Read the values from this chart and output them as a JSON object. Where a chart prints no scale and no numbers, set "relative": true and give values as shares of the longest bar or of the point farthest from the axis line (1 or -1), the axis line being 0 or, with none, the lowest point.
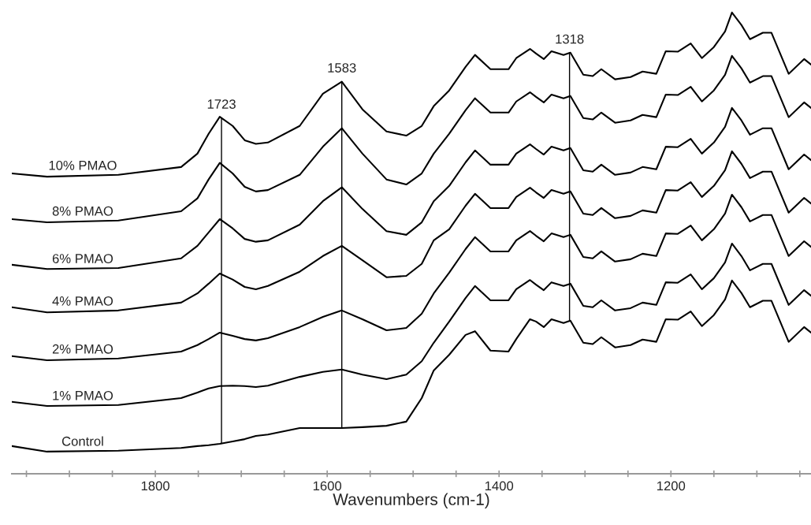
{
  "chart_data": {
    "type": "line",
    "relative": true,
    "xlabel": "Wavenumbers (cm-1)",
    "x": [
      1967,
      1926,
      1843,
      1770,
      1751,
      1738,
      1725,
      1710,
      1696,
      1683,
      1669,
      1632,
      1605,
      1583,
      1559,
      1531,
      1508,
      1490,
      1476,
      1458,
      1439,
      1428,
      1410,
      1389,
      1380,
      1364,
      1357,
      1348,
      1339,
      1325,
      1317,
      1302,
      1291,
      1281,
      1265,
      1247,
      1233,
      1217,
      1206,
      1192,
      1177,
      1164,
      1150,
      1137,
      1129,
      1118,
      1108,
      1093,
      1083,
      1063,
      1045,
      1037
    ],
    "xlim": [
      1967,
      1037
    ],
    "xticks": [
      {
        "value": 1950,
        "label": null
      },
      {
        "value": 1900,
        "label": null
      },
      {
        "value": 1850,
        "label": null
      },
      1800,
      {
        "value": 1750,
        "label": null
      },
      {
        "value": 1700,
        "label": null
      },
      {
        "value": 1650,
        "label": null
      },
      1600,
      {
        "value": 1550,
        "label": null
      },
      {
        "value": 1500,
        "label": null
      },
      {
        "value": 1450,
        "label": null
      },
      1400,
      {
        "value": 1350,
        "label": null
      },
      {
        "value": 1300,
        "label": null
      },
      {
        "value": 1250,
        "label": null
      },
      1200,
      {
        "value": 1150,
        "label": null
      },
      {
        "value": 1100,
        "label": null
      },
      {
        "value": 1050,
        "label": null
      }
    ],
    "tick_labels": "x",
    "series": [
      {
        "name": "10% PMAO",
        "color": "#000000",
        "values": [
          0.651,
          0.644,
          0.648,
          0.665,
          0.694,
          0.737,
          0.774,
          0.754,
          0.723,
          0.715,
          0.718,
          0.754,
          0.824,
          0.85,
          0.79,
          0.742,
          0.733,
          0.754,
          0.797,
          0.831,
          0.882,
          0.908,
          0.877,
          0.877,
          0.901,
          0.921,
          0.911,
          0.899,
          0.916,
          0.908,
          0.913,
          0.865,
          0.862,
          0.877,
          0.855,
          0.86,
          0.872,
          0.867,
          0.916,
          0.915,
          0.933,
          0.901,
          0.925,
          0.959,
          1.0,
          0.973,
          0.942,
          0.956,
          0.956,
          0.867,
          0.899,
          0.887
        ]
      },
      {
        "name": "8% PMAO",
        "color": "#000000",
        "values": [
          0.552,
          0.545,
          0.549,
          0.569,
          0.597,
          0.638,
          0.674,
          0.651,
          0.622,
          0.612,
          0.615,
          0.648,
          0.709,
          0.749,
          0.694,
          0.638,
          0.627,
          0.651,
          0.694,
          0.737,
          0.788,
          0.814,
          0.783,
          0.783,
          0.807,
          0.827,
          0.817,
          0.805,
          0.822,
          0.814,
          0.819,
          0.771,
          0.768,
          0.783,
          0.761,
          0.766,
          0.778,
          0.773,
          0.822,
          0.821,
          0.839,
          0.807,
          0.831,
          0.865,
          0.906,
          0.879,
          0.848,
          0.862,
          0.862,
          0.773,
          0.805,
          0.793
        ]
      },
      {
        "name": "6% PMAO",
        "color": "#000000",
        "values": [
          0.453,
          0.444,
          0.446,
          0.467,
          0.494,
          0.523,
          0.552,
          0.532,
          0.509,
          0.503,
          0.506,
          0.54,
          0.591,
          0.621,
          0.574,
          0.526,
          0.518,
          0.545,
          0.591,
          0.624,
          0.675,
          0.701,
          0.67,
          0.67,
          0.694,
          0.714,
          0.704,
          0.692,
          0.709,
          0.701,
          0.706,
          0.658,
          0.655,
          0.67,
          0.648,
          0.653,
          0.665,
          0.66,
          0.709,
          0.708,
          0.726,
          0.694,
          0.718,
          0.752,
          0.793,
          0.766,
          0.735,
          0.749,
          0.749,
          0.66,
          0.692,
          0.68
        ]
      },
      {
        "name": "4% PMAO",
        "color": "#000000",
        "values": [
          0.361,
          0.35,
          0.354,
          0.371,
          0.391,
          0.412,
          0.434,
          0.421,
          0.405,
          0.4,
          0.407,
          0.438,
          0.472,
          0.494,
          0.463,
          0.426,
          0.429,
          0.455,
          0.506,
          0.53,
          0.581,
          0.607,
          0.576,
          0.576,
          0.6,
          0.62,
          0.61,
          0.598,
          0.615,
          0.607,
          0.612,
          0.564,
          0.561,
          0.576,
          0.554,
          0.559,
          0.571,
          0.566,
          0.615,
          0.614,
          0.632,
          0.6,
          0.624,
          0.658,
          0.699,
          0.672,
          0.641,
          0.655,
          0.655,
          0.566,
          0.598,
          0.586
        ]
      },
      {
        "name": "2% PMAO",
        "color": "#000000",
        "values": [
          0.255,
          0.246,
          0.25,
          0.265,
          0.279,
          0.292,
          0.306,
          0.299,
          0.292,
          0.289,
          0.294,
          0.318,
          0.34,
          0.354,
          0.335,
          0.311,
          0.316,
          0.347,
          0.391,
          0.436,
          0.487,
          0.513,
          0.482,
          0.482,
          0.506,
          0.526,
          0.516,
          0.504,
          0.521,
          0.513,
          0.518,
          0.47,
          0.467,
          0.482,
          0.46,
          0.465,
          0.477,
          0.472,
          0.521,
          0.52,
          0.538,
          0.506,
          0.53,
          0.564,
          0.605,
          0.578,
          0.547,
          0.561,
          0.561,
          0.472,
          0.504,
          0.492
        ]
      },
      {
        "name": "1% PMAO",
        "color": "#000000",
        "values": [
          0.156,
          0.147,
          0.149,
          0.164,
          0.176,
          0.185,
          0.19,
          0.191,
          0.19,
          0.188,
          0.191,
          0.21,
          0.221,
          0.226,
          0.215,
          0.205,
          0.215,
          0.244,
          0.284,
          0.33,
          0.381,
          0.407,
          0.376,
          0.376,
          0.4,
          0.42,
          0.41,
          0.398,
          0.415,
          0.407,
          0.412,
          0.364,
          0.361,
          0.376,
          0.354,
          0.359,
          0.371,
          0.366,
          0.415,
          0.414,
          0.432,
          0.4,
          0.424,
          0.458,
          0.499,
          0.472,
          0.441,
          0.455,
          0.455,
          0.366,
          0.398,
          0.386
        ]
      },
      {
        "name": "Control",
        "color": "#000000",
        "values": [
          0.06,
          0.048,
          0.05,
          0.056,
          0.06,
          0.062,
          0.065,
          0.07,
          0.075,
          0.082,
          0.085,
          0.099,
          0.099,
          0.099,
          0.101,
          0.104,
          0.113,
          0.164,
          0.224,
          0.258,
          0.301,
          0.309,
          0.267,
          0.265,
          0.292,
          0.335,
          0.33,
          0.318,
          0.335,
          0.327,
          0.332,
          0.284,
          0.281,
          0.296,
          0.274,
          0.279,
          0.291,
          0.286,
          0.335,
          0.334,
          0.352,
          0.32,
          0.344,
          0.378,
          0.419,
          0.392,
          0.361,
          0.375,
          0.375,
          0.286,
          0.318,
          0.306
        ]
      }
    ],
    "ref_lines": [
      {
        "axis": "x",
        "value": 1723,
        "label": "1723",
        "color": "#000000"
      },
      {
        "axis": "x",
        "value": 1583,
        "label": "1583",
        "color": "#000000"
      },
      {
        "axis": "x",
        "value": 1318,
        "label": "1318",
        "color": "#000000"
      }
    ]
  }
}
